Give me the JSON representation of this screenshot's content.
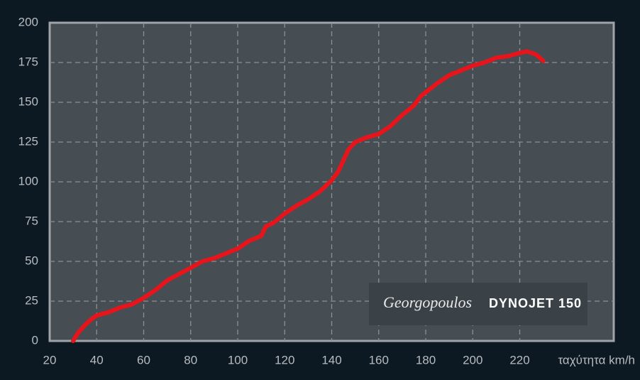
{
  "chart_data": {
    "type": "line",
    "x_label": "ταχύτητα km/h",
    "annotations": [
      "Georgopoulos",
      "DYNOJET 150"
    ],
    "x": [
      30,
      32,
      35,
      38,
      40,
      45,
      50,
      55,
      60,
      65,
      70,
      75,
      80,
      85,
      90,
      95,
      100,
      105,
      110,
      112,
      115,
      120,
      125,
      130,
      135,
      140,
      143,
      147,
      150,
      155,
      160,
      165,
      170,
      175,
      178,
      185,
      190,
      195,
      200,
      205,
      210,
      215,
      220,
      223,
      227,
      230
    ],
    "series": [
      {
        "color": "#e8141c",
        "values": [
          0,
          5,
          10,
          14,
          16,
          18,
          21,
          23,
          27,
          32,
          38,
          42,
          46,
          50,
          52,
          55,
          58,
          63,
          66,
          72,
          74,
          80,
          85,
          89,
          94,
          101,
          107,
          120,
          125,
          128,
          130,
          135,
          142,
          148,
          154,
          162,
          167,
          170,
          173,
          175,
          178,
          179,
          181,
          182,
          180,
          176
        ]
      }
    ],
    "xlim": [
      20,
      260
    ],
    "xticks": [
      20,
      40,
      60,
      80,
      100,
      120,
      140,
      160,
      180,
      200,
      220
    ],
    "ylim": [
      0,
      200
    ],
    "yticks": [
      0,
      25,
      50,
      75,
      100,
      125,
      150,
      175,
      200
    ],
    "grid": true
  }
}
